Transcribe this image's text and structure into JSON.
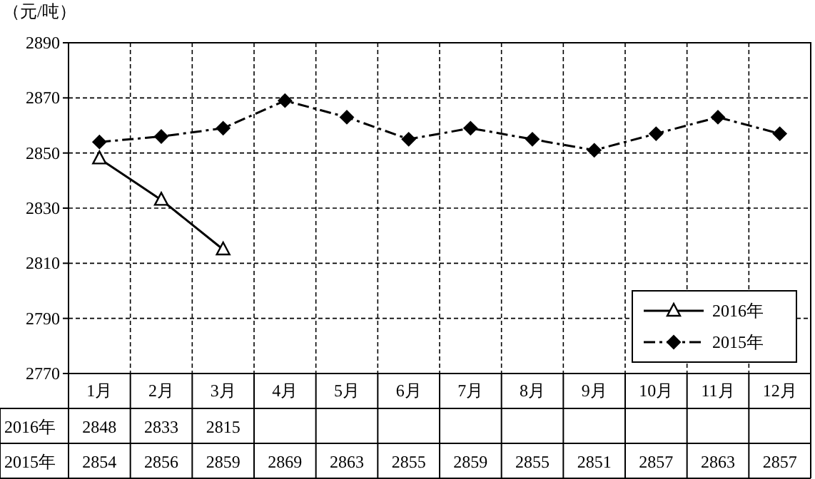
{
  "chart_data": {
    "type": "line",
    "ylabel": "（元/吨）",
    "categories": [
      "1月",
      "2月",
      "3月",
      "4月",
      "5月",
      "6月",
      "7月",
      "8月",
      "9月",
      "10月",
      "11月",
      "12月"
    ],
    "series": [
      {
        "name": "2016年",
        "color": "#000000",
        "marker": "triangle",
        "line_style": "solid",
        "values": [
          2848,
          2833,
          2815,
          null,
          null,
          null,
          null,
          null,
          null,
          null,
          null,
          null
        ]
      },
      {
        "name": "2015年",
        "color": "#000000",
        "marker": "diamond",
        "line_style": "dashed",
        "values": [
          2854,
          2856,
          2859,
          2869,
          2863,
          2855,
          2859,
          2855,
          2851,
          2857,
          2863,
          2857
        ]
      }
    ],
    "ylim": [
      2770,
      2890
    ],
    "yticks": [
      2770,
      2790,
      2810,
      2830,
      2850,
      2870,
      2890
    ],
    "grid": true,
    "legend": "bottom right",
    "data_labels": true
  }
}
